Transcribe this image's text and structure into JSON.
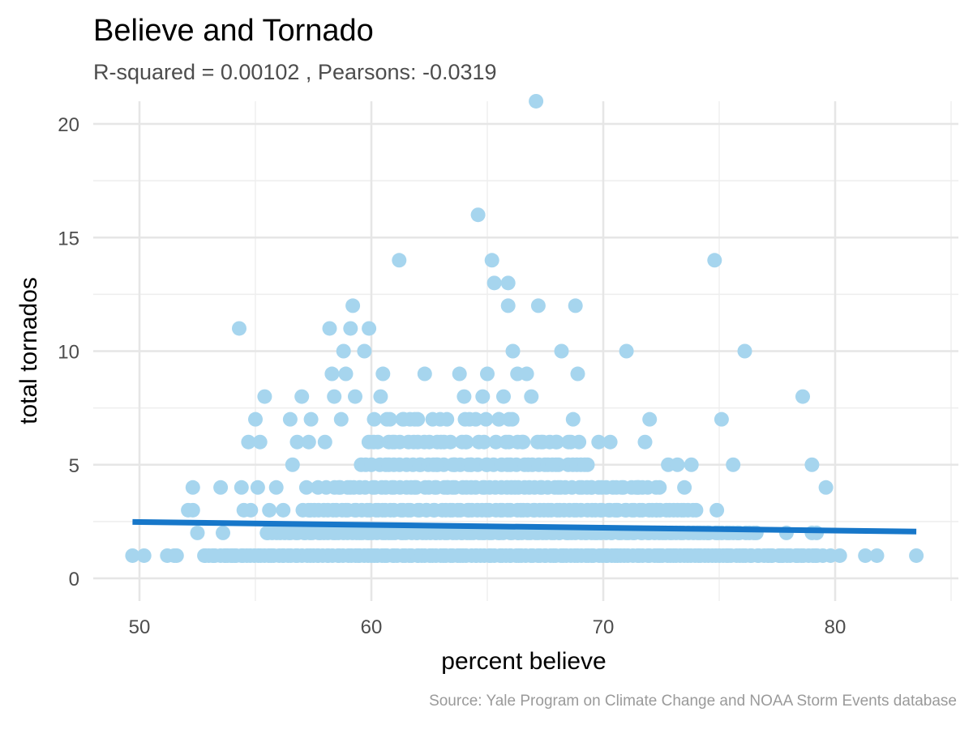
{
  "chart_data": {
    "type": "scatter",
    "title": "Believe and Tornado",
    "subtitle": "R-squared =  0.00102 , Pearsons: -0.0319",
    "xlabel": "percent believe",
    "ylabel": "total tornados",
    "caption": "Source: Yale Program on Climate Change and NOAA Storm Events database",
    "xlim": [
      48,
      85
    ],
    "ylim": [
      -1,
      21
    ],
    "x_ticks": [
      50,
      60,
      70,
      80
    ],
    "y_ticks": [
      0,
      5,
      10,
      15,
      20
    ],
    "x_minor": [
      55,
      65,
      75,
      85
    ],
    "y_minor": [
      2.5,
      7.5,
      12.5,
      17.5
    ],
    "grid": true,
    "legend": "none",
    "point_color": "#a6d5ee",
    "line_color": "#1777c9",
    "trend_line": {
      "x": [
        49.7,
        83.5
      ],
      "y": [
        2.48,
        2.06
      ]
    },
    "points": [
      [
        49.7,
        1
      ],
      [
        50.2,
        1
      ],
      [
        51.2,
        1
      ],
      [
        51.5,
        1
      ],
      [
        51.6,
        1
      ],
      [
        52.1,
        3
      ],
      [
        52.3,
        4
      ],
      [
        52.3,
        3
      ],
      [
        52.5,
        2
      ],
      [
        52.8,
        1
      ],
      [
        53.2,
        1
      ],
      [
        53.5,
        4
      ],
      [
        53.6,
        2
      ],
      [
        53.8,
        1
      ],
      [
        54.1,
        1
      ],
      [
        54.3,
        11
      ],
      [
        54.4,
        4
      ],
      [
        54.5,
        3
      ],
      [
        54.7,
        6
      ],
      [
        54.8,
        3
      ],
      [
        55.0,
        7
      ],
      [
        55.1,
        4
      ],
      [
        55.2,
        6
      ],
      [
        55.4,
        8
      ],
      [
        55.5,
        2
      ],
      [
        55.6,
        3
      ],
      [
        55.9,
        4
      ],
      [
        56.2,
        3
      ],
      [
        56.5,
        7
      ],
      [
        56.6,
        5
      ],
      [
        56.8,
        6
      ],
      [
        57.0,
        8
      ],
      [
        57.2,
        4
      ],
      [
        57.3,
        6
      ],
      [
        57.4,
        7
      ],
      [
        57.7,
        4
      ],
      [
        58.0,
        6
      ],
      [
        58.2,
        11
      ],
      [
        58.3,
        9
      ],
      [
        58.4,
        8
      ],
      [
        58.7,
        7
      ],
      [
        58.8,
        10
      ],
      [
        58.9,
        9
      ],
      [
        59.1,
        11
      ],
      [
        59.2,
        12
      ],
      [
        59.3,
        8
      ],
      [
        59.7,
        10
      ],
      [
        59.9,
        11
      ],
      [
        60.1,
        6
      ],
      [
        60.4,
        8
      ],
      [
        60.5,
        9
      ],
      [
        60.8,
        7
      ],
      [
        61.0,
        6
      ],
      [
        61.2,
        14
      ],
      [
        61.4,
        7
      ],
      [
        61.6,
        6
      ],
      [
        62.0,
        7
      ],
      [
        62.3,
        9
      ],
      [
        62.5,
        6
      ],
      [
        62.8,
        5
      ],
      [
        63.0,
        6
      ],
      [
        63.3,
        4
      ],
      [
        63.6,
        5
      ],
      [
        63.8,
        9
      ],
      [
        64.0,
        8
      ],
      [
        64.1,
        6
      ],
      [
        64.3,
        5
      ],
      [
        64.5,
        7
      ],
      [
        64.6,
        16
      ],
      [
        64.8,
        8
      ],
      [
        65.0,
        9
      ],
      [
        65.2,
        14
      ],
      [
        65.3,
        13
      ],
      [
        65.5,
        7
      ],
      [
        65.7,
        8
      ],
      [
        65.9,
        13
      ],
      [
        65.9,
        12
      ],
      [
        66.1,
        10
      ],
      [
        66.3,
        9
      ],
      [
        66.5,
        6
      ],
      [
        66.7,
        9
      ],
      [
        66.9,
        8
      ],
      [
        67.1,
        21
      ],
      [
        67.2,
        12
      ],
      [
        67.4,
        6
      ],
      [
        67.8,
        5
      ],
      [
        68.0,
        6
      ],
      [
        68.2,
        10
      ],
      [
        68.5,
        6
      ],
      [
        68.7,
        7
      ],
      [
        68.8,
        12
      ],
      [
        68.9,
        9
      ],
      [
        69.2,
        5
      ],
      [
        69.5,
        4
      ],
      [
        69.8,
        6
      ],
      [
        70.3,
        6
      ],
      [
        70.5,
        3
      ],
      [
        71.0,
        10
      ],
      [
        71.5,
        4
      ],
      [
        71.8,
        6
      ],
      [
        72.0,
        7
      ],
      [
        72.3,
        3
      ],
      [
        72.8,
        5
      ],
      [
        73.2,
        5
      ],
      [
        73.5,
        4
      ],
      [
        73.8,
        5
      ],
      [
        74.0,
        3
      ],
      [
        74.5,
        2
      ],
      [
        74.8,
        14
      ],
      [
        74.9,
        3
      ],
      [
        75.1,
        7
      ],
      [
        75.6,
        5
      ],
      [
        75.8,
        2
      ],
      [
        76.1,
        10
      ],
      [
        76.6,
        2
      ],
      [
        77.1,
        1
      ],
      [
        77.6,
        1
      ],
      [
        77.9,
        2
      ],
      [
        78.4,
        1
      ],
      [
        78.6,
        8
      ],
      [
        79.0,
        5
      ],
      [
        79.0,
        2
      ],
      [
        79.2,
        2
      ],
      [
        79.6,
        4
      ],
      [
        79.8,
        1
      ],
      [
        80.2,
        1
      ],
      [
        81.3,
        1
      ],
      [
        81.8,
        1
      ],
      [
        83.5,
        1
      ]
    ],
    "dense_bands": [
      {
        "y": 1,
        "x_from": 52.8,
        "x_to": 79.5,
        "count": 180,
        "seed": 11
      },
      {
        "y": 2,
        "x_from": 55.5,
        "x_to": 76.5,
        "count": 130,
        "seed": 23
      },
      {
        "y": 3,
        "x_from": 57.0,
        "x_to": 74.0,
        "count": 95,
        "seed": 37
      },
      {
        "y": 4,
        "x_from": 58.0,
        "x_to": 72.5,
        "count": 70,
        "seed": 41
      },
      {
        "y": 5,
        "x_from": 59.5,
        "x_to": 69.5,
        "count": 42,
        "seed": 53
      },
      {
        "y": 6,
        "x_from": 59.8,
        "x_to": 69.0,
        "count": 26,
        "seed": 67
      },
      {
        "y": 7,
        "x_from": 60.0,
        "x_to": 66.5,
        "count": 14,
        "seed": 79
      }
    ]
  }
}
